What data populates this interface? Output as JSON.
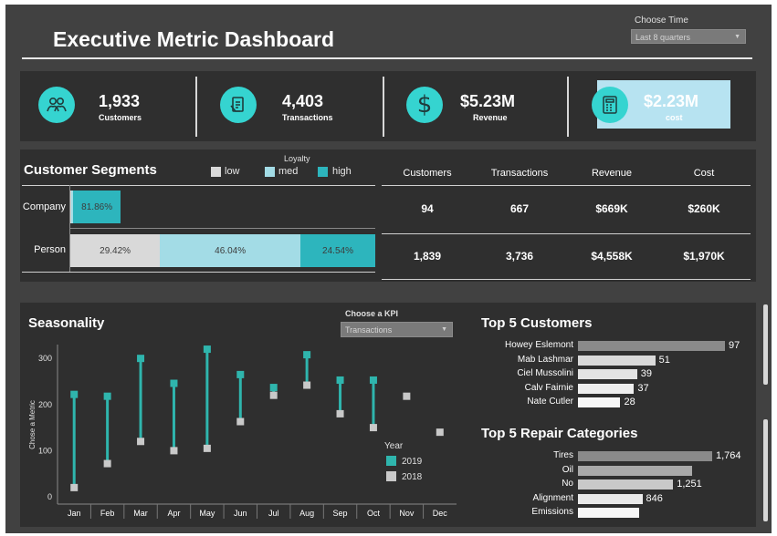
{
  "header": {
    "title": "Executive Metric Dashboard",
    "time_label": "Choose Time",
    "time_value": "Last 8 quarters"
  },
  "kpis": [
    {
      "value": "1,933",
      "label": "Customers",
      "icon": "people-icon"
    },
    {
      "value": "4,403",
      "label": "Transactions",
      "icon": "receipt-icon"
    },
    {
      "value": "$5.23M",
      "label": "Revenue",
      "icon": "dollar-icon"
    },
    {
      "value": "$2.23M",
      "label": "cost",
      "icon": "calculator-icon"
    }
  ],
  "segments": {
    "title": "Customer Segments",
    "legend_title": "Loyalty",
    "legend": [
      {
        "name": "low",
        "color": "#d9d9d9"
      },
      {
        "name": "med",
        "color": "#a3dce6"
      },
      {
        "name": "high",
        "color": "#2db5bd"
      }
    ],
    "columns": [
      "Customers",
      "Transactions",
      "Revenue",
      "Cost"
    ],
    "rows": [
      {
        "label": "Company",
        "parts": [
          {
            "level": "low",
            "pct": 2.0,
            "text": ""
          },
          {
            "level": "med",
            "pct": 3.0,
            "text": ""
          },
          {
            "level": "high",
            "pct": 81.86,
            "text": "81.86%"
          }
        ],
        "values": [
          "94",
          "667",
          "$669K",
          "$260K"
        ]
      },
      {
        "label": "Person",
        "parts": [
          {
            "level": "low",
            "pct": 29.42,
            "text": "29.42%"
          },
          {
            "level": "med",
            "pct": 46.04,
            "text": "46.04%"
          },
          {
            "level": "high",
            "pct": 24.54,
            "text": "24.54%"
          }
        ],
        "values": [
          "1,839",
          "3,736",
          "$4,558K",
          "$1,970K"
        ]
      }
    ]
  },
  "seasonality": {
    "title": "Seasonality",
    "kpi_label": "Choose a KPI",
    "kpi_value": "Transactions"
  },
  "chart_data": [
    {
      "type": "scatter",
      "title": "Seasonality",
      "ylabel": "Chose a Metric",
      "ylim": [
        0,
        330
      ],
      "yticks": [
        0,
        100,
        200,
        300
      ],
      "legend_title": "Year",
      "legend_position": "bottom-right",
      "categories": [
        "Jan",
        "Feb",
        "Mar",
        "Apr",
        "May",
        "Jun",
        "Jul",
        "Aug",
        "Sep",
        "Oct",
        "Nov",
        "Dec"
      ],
      "series": [
        {
          "name": "2019",
          "color": "#2fb5ad",
          "values": [
            222,
            218,
            300,
            246,
            320,
            265,
            237,
            308,
            253,
            253,
            null,
            null
          ]
        },
        {
          "name": "2018",
          "color": "#c9c9c9",
          "values": [
            20,
            72,
            120,
            100,
            105,
            163,
            220,
            242,
            180,
            150,
            218,
            140
          ]
        }
      ]
    },
    {
      "type": "bar",
      "title": "Top 5 Customers",
      "categories": [
        "Howey Eslemont",
        "Mab Lashmar",
        "Ciel Mussolini",
        "Calv Fairnie",
        "Nate Cutler"
      ],
      "values": [
        97,
        51,
        39,
        37,
        28
      ],
      "labels": [
        "97",
        "51",
        "39",
        "37",
        "28"
      ]
    },
    {
      "type": "bar",
      "title": "Top 5 Repair Categories",
      "categories": [
        "Tires",
        "Oil",
        "No",
        "Alignment",
        "Emissions"
      ],
      "values": [
        1764,
        1500,
        1251,
        846,
        800
      ],
      "labels": [
        "1,764",
        "",
        "1,251",
        "846",
        ""
      ]
    }
  ]
}
